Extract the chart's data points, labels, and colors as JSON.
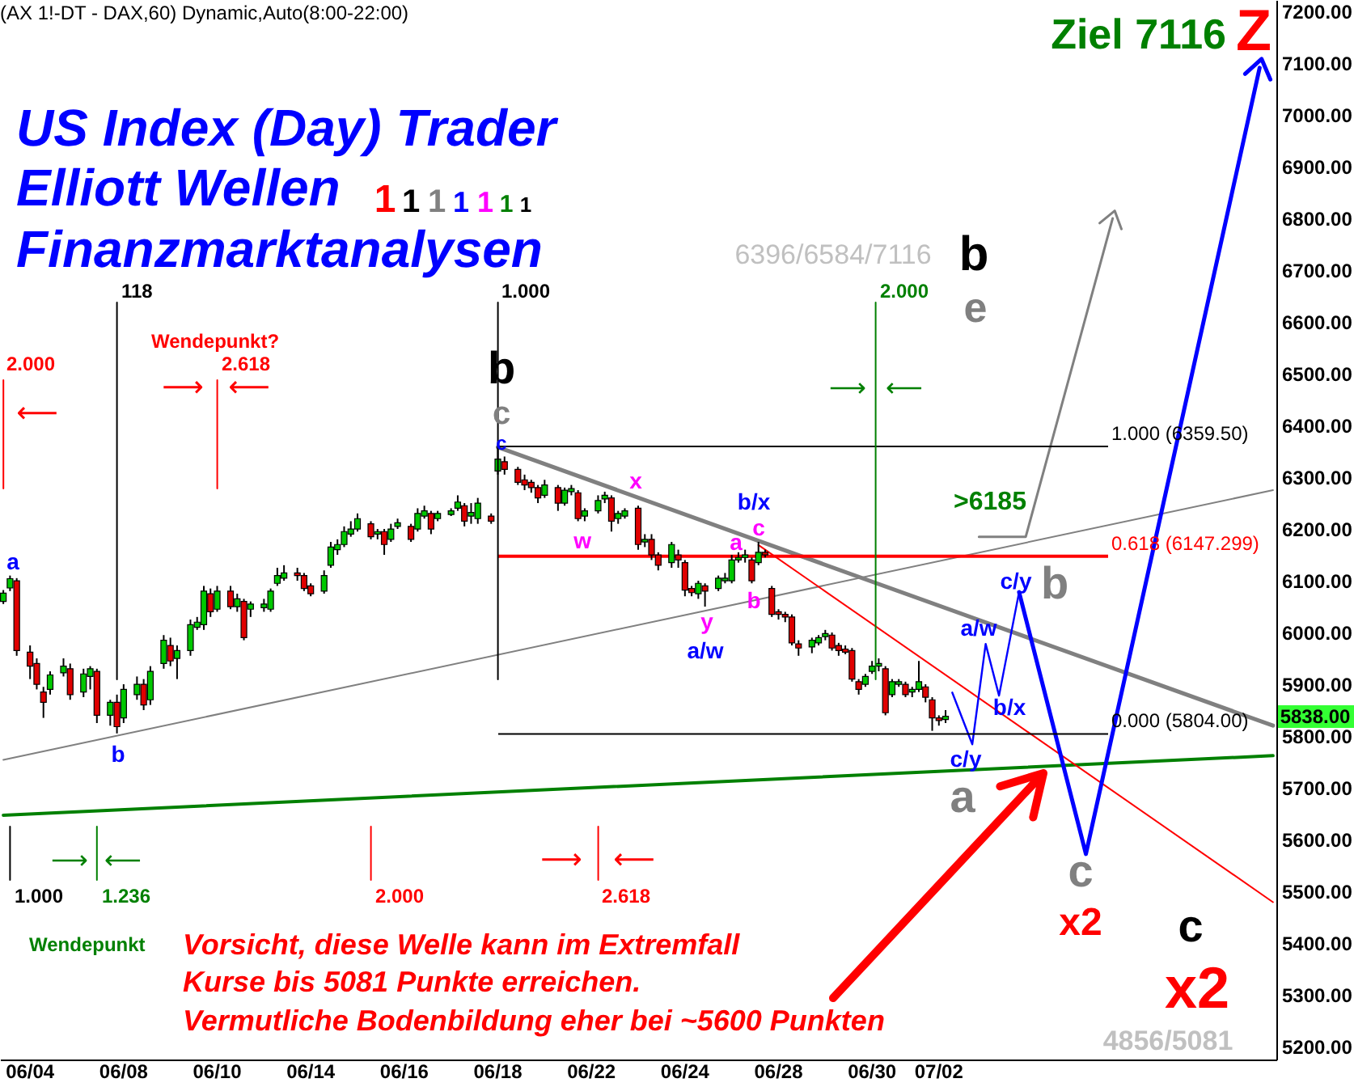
{
  "chart_data": {
    "type": "candlestick",
    "title": "(AX 1!-DT - DAX,60) Dynamic,Auto(8:00-22:00)",
    "categories": [
      null,
      null,
      null,
      null,
      "06/04",
      null,
      null,
      null,
      null,
      null,
      null,
      null,
      null,
      null,
      null,
      null,
      null,
      null,
      "06/08",
      null,
      null,
      null,
      null,
      null,
      null,
      null,
      null,
      null,
      null,
      null,
      null,
      null,
      "06/10",
      null,
      null,
      null,
      null,
      null,
      null,
      null,
      null,
      null,
      null,
      null,
      null,
      null,
      "06/14",
      null,
      null,
      null,
      null,
      null,
      null,
      null,
      null,
      null,
      null,
      null,
      null,
      null,
      "06/16",
      null,
      null,
      null,
      null,
      null,
      null,
      null,
      null,
      null,
      null,
      null,
      null,
      null,
      "06/18",
      null,
      null,
      null,
      null,
      null,
      null,
      null,
      null,
      null,
      null,
      null,
      null,
      null,
      "06/22",
      null,
      null,
      null,
      null,
      null,
      null,
      null,
      null,
      null,
      null,
      null,
      null,
      null,
      "06/24",
      null,
      null,
      null,
      null,
      null,
      null,
      null,
      null,
      null,
      null,
      null,
      null,
      null,
      "06/28",
      null,
      null,
      null,
      null,
      null,
      null,
      null,
      null,
      null,
      null,
      null,
      null,
      null,
      "06/30",
      null,
      null,
      null,
      null,
      null,
      null,
      null,
      null,
      null,
      "07/02",
      null,
      null,
      null,
      null,
      null,
      null,
      null,
      null,
      null,
      null,
      null,
      null,
      null,
      null,
      null,
      null,
      null,
      null,
      null,
      null,
      null,
      null,
      null,
      null,
      null,
      null,
      null,
      null,
      null,
      null,
      null,
      null,
      null,
      null,
      null,
      null,
      null,
      null,
      null,
      null,
      null,
      null,
      null,
      null,
      null,
      null,
      null,
      null,
      null,
      null
    ],
    "ohlc": [
      [
        6060,
        6082,
        6055,
        6076
      ],
      [
        6086,
        6110,
        6080,
        6104
      ],
      [
        6100,
        6105,
        5955,
        5965
      ],
      null,
      [
        5962,
        5975,
        5910,
        5935
      ],
      [
        5940,
        5950,
        5890,
        5900
      ],
      [
        5885,
        5895,
        5835,
        5865
      ],
      [
        5890,
        5925,
        5880,
        5918
      ],
      null,
      [
        5922,
        5950,
        5915,
        5935
      ],
      [
        5930,
        5940,
        5870,
        5880
      ],
      null,
      [
        5885,
        5930,
        5875,
        5920
      ],
      [
        5915,
        5935,
        5890,
        5930
      ],
      [
        5925,
        5930,
        5825,
        5840
      ],
      null,
      [
        5840,
        5870,
        5820,
        5865
      ],
      [
        5865,
        5880,
        5805,
        5818
      ],
      [
        5835,
        5900,
        5825,
        5890
      ],
      null,
      [
        5880,
        5915,
        5870,
        5900
      ],
      [
        5900,
        5910,
        5850,
        5860
      ],
      [
        5870,
        5935,
        5860,
        5925
      ],
      null,
      [
        5940,
        5995,
        5930,
        5985
      ],
      [
        5975,
        5990,
        5935,
        5945
      ],
      [
        5950,
        5975,
        5910,
        5965
      ],
      null,
      [
        5965,
        6025,
        5955,
        6015
      ],
      [
        6010,
        6030,
        6005,
        6020
      ],
      [
        6015,
        6090,
        6005,
        6080
      ],
      [
        6075,
        6085,
        6030,
        6040
      ],
      [
        6045,
        6090,
        6040,
        6080
      ],
      null,
      [
        6080,
        6090,
        6045,
        6050
      ],
      [
        6050,
        6075,
        6040,
        6065
      ],
      [
        6060,
        6065,
        5985,
        5990
      ],
      [
        6045,
        6060,
        6030,
        6055
      ],
      null,
      [
        6048,
        6065,
        6040,
        6055
      ],
      [
        6045,
        6085,
        6040,
        6080
      ],
      [
        6095,
        6125,
        6090,
        6110
      ],
      [
        6105,
        6130,
        6100,
        6115
      ],
      null,
      [
        6115,
        6125,
        6100,
        6110
      ],
      [
        6110,
        6115,
        6080,
        6085
      ],
      [
        6090,
        6095,
        6070,
        6075
      ],
      null,
      [
        6080,
        6120,
        6075,
        6110
      ],
      [
        6130,
        6175,
        6125,
        6165
      ],
      [
        6160,
        6180,
        6150,
        6170
      ],
      [
        6170,
        6205,
        6165,
        6195
      ],
      [
        6190,
        6215,
        6185,
        6200
      ],
      [
        6200,
        6230,
        6195,
        6220
      ],
      null,
      [
        6210,
        6215,
        6180,
        6185
      ],
      [
        6190,
        6200,
        6180,
        6195
      ],
      [
        6195,
        6200,
        6150,
        6170
      ],
      [
        6180,
        6210,
        6175,
        6200
      ],
      [
        6205,
        6220,
        6200,
        6212
      ],
      null,
      [
        6205,
        6210,
        6175,
        6180
      ],
      [
        6200,
        6240,
        6195,
        6230
      ],
      [
        6225,
        6245,
        6220,
        6235
      ],
      [
        6230,
        6235,
        6190,
        6200
      ],
      [
        6220,
        6235,
        6215,
        6230
      ],
      null,
      [
        6228,
        6240,
        6225,
        6235
      ],
      [
        6240,
        6265,
        6235,
        6252
      ],
      [
        6245,
        6250,
        6205,
        6215
      ],
      [
        6225,
        6250,
        6210,
        6232
      ],
      [
        6220,
        6260,
        6210,
        6250
      ],
      null,
      [
        6225,
        6230,
        6210,
        6215
      ],
      [
        6312,
        6359.5,
        6305,
        6335
      ],
      [
        6330,
        6340,
        6305,
        6315
      ],
      null,
      [
        6315,
        6320,
        6285,
        6290
      ],
      [
        6295,
        6305,
        6275,
        6285
      ],
      [
        6290,
        6295,
        6270,
        6280
      ],
      [
        6280,
        6285,
        6250,
        6260
      ],
      [
        6265,
        6295,
        6260,
        6285
      ],
      null,
      [
        6280,
        6285,
        6235,
        6250
      ],
      [
        6250,
        6280,
        6245,
        6275
      ],
      [
        6272,
        6285,
        6265,
        6278
      ],
      [
        6270,
        6275,
        6215,
        6220
      ],
      [
        6225,
        6240,
        6215,
        6235
      ],
      null,
      [
        6235,
        6265,
        6230,
        6255
      ],
      [
        6258,
        6272,
        6250,
        6265
      ],
      [
        6260,
        6265,
        6195,
        6215
      ],
      [
        6220,
        6235,
        6210,
        6230
      ],
      [
        6225,
        6240,
        6220,
        6235
      ],
      null,
      [
        6240,
        6245,
        6160,
        6170
      ],
      [
        6175,
        6190,
        6165,
        6180
      ],
      [
        6180,
        6190,
        6140,
        6150
      ],
      [
        6150,
        6155,
        6120,
        6130
      ],
      null,
      [
        6135,
        6175,
        6125,
        6170
      ],
      [
        6150,
        6160,
        6125,
        6140
      ],
      [
        6135,
        6140,
        6070,
        6082
      ],
      [
        6085,
        6090,
        6070,
        6077
      ],
      [
        6075,
        6100,
        6065,
        6095
      ],
      [
        6090,
        6095,
        6050,
        6080
      ],
      null,
      [
        6085,
        6110,
        6080,
        6105
      ],
      [
        6100,
        6115,
        6095,
        6105
      ],
      [
        6100,
        6150,
        6095,
        6140
      ],
      [
        6140,
        6155,
        6135,
        6145
      ],
      [
        6145,
        6160,
        6135,
        6150
      ],
      [
        6140,
        6145,
        6095,
        6100
      ],
      [
        6135,
        6175,
        6130,
        6155
      ],
      [
        6155,
        6160,
        6145,
        6150
      ],
      [
        6085,
        6090,
        6030,
        6035
      ],
      [
        6040,
        6045,
        6025,
        6035
      ],
      [
        6035,
        6040,
        6020,
        6030
      ],
      [
        6030,
        6035,
        5975,
        5980
      ],
      [
        5978,
        5985,
        5955,
        5970
      ],
      null,
      [
        5972,
        5990,
        5960,
        5985
      ],
      [
        5980,
        5995,
        5975,
        5990
      ],
      [
        5992,
        6005,
        5985,
        5998
      ],
      [
        5995,
        6000,
        5965,
        5970
      ],
      [
        5975,
        5980,
        5955,
        5965
      ],
      [
        5968,
        5975,
        5958,
        5962
      ],
      [
        5965,
        5970,
        5905,
        5910
      ],
      [
        5905,
        5910,
        5880,
        5890
      ],
      [
        5900,
        5920,
        5895,
        5915
      ],
      [
        5925,
        5945,
        5920,
        5935
      ],
      [
        5935,
        5950,
        5925,
        5940
      ],
      [
        5930,
        5935,
        5840,
        5845
      ],
      [
        5880,
        5910,
        5875,
        5905
      ],
      [
        5900,
        5910,
        5895,
        5905
      ],
      [
        5900,
        5905,
        5875,
        5880
      ],
      [
        5885,
        5895,
        5875,
        5890
      ],
      [
        5890,
        5945,
        5885,
        5905
      ],
      [
        5895,
        5900,
        5865,
        5875
      ],
      [
        5870,
        5875,
        5810,
        5835
      ],
      [
        5835,
        5840,
        5820,
        5830
      ],
      [
        5832,
        5850,
        5825,
        5838
      ],
      null,
      null,
      null,
      null,
      null,
      null,
      null,
      null,
      null,
      null,
      null,
      null,
      null,
      null,
      null,
      null,
      null,
      null,
      null,
      null,
      null,
      null,
      null,
      null,
      null,
      null,
      null,
      null,
      null,
      null,
      null,
      null,
      null,
      null,
      null,
      null,
      null,
      null,
      null,
      null,
      null,
      null,
      null,
      null,
      null,
      null,
      null,
      null,
      null
    ],
    "colors": [
      "#00c800",
      "#00c800",
      "#e00000",
      null,
      "#e00000",
      "#e00000",
      "#e00000",
      "#00c800",
      null,
      "#00c800",
      "#e00000",
      null,
      "#00c800",
      "#00c800",
      "#e00000",
      null,
      "#00c800",
      "#e00000",
      "#00c800",
      null,
      "#00c800",
      "#e00000",
      "#00c800",
      null,
      "#00c800",
      "#e00000",
      "#00c800",
      null,
      "#00c800",
      "#00c800",
      "#00c800",
      "#e00000",
      "#00c800",
      null,
      "#e00000",
      "#00c800",
      "#e00000",
      "#00c800",
      null,
      "#00c800",
      "#00c800",
      "#00c800",
      "#00c800",
      null,
      "#e00000",
      "#e00000",
      "#e00000",
      null,
      "#00c800",
      "#00c800",
      "#00c800",
      "#00c800",
      "#00c800",
      "#00c800",
      null,
      "#e00000",
      "#00c800",
      "#e00000",
      "#00c800",
      "#00c800",
      null,
      "#e00000",
      "#00c800",
      "#00c800",
      "#e00000",
      "#00c800",
      null,
      "#00c800",
      "#00c800",
      "#e00000",
      "#00c800",
      "#00c800",
      null,
      "#e00000",
      "#00c800",
      "#e00000",
      null,
      "#e00000",
      "#e00000",
      "#e00000",
      "#e00000",
      "#00c800",
      null,
      "#e00000",
      "#00c800",
      "#00c800",
      "#e00000",
      "#00c800",
      null,
      "#00c800",
      "#00c800",
      "#e00000",
      "#00c800",
      "#00c800",
      null,
      "#e00000",
      "#00c800",
      "#e00000",
      "#e00000",
      null,
      "#00c800",
      "#e00000",
      "#e00000",
      "#e00000",
      "#00c800",
      "#e00000",
      null,
      "#00c800",
      "#00c800",
      "#00c800",
      "#00c800",
      "#00c800",
      "#e00000",
      "#00c800",
      "#e00000",
      "#e00000",
      "#e00000",
      "#e00000",
      "#e00000",
      "#e00000",
      null,
      "#00c800",
      "#00c800",
      "#00c800",
      "#e00000",
      "#e00000",
      "#e00000",
      "#e00000",
      "#e00000",
      "#00c800",
      "#00c800",
      "#00c800",
      "#e00000",
      "#00c800",
      "#00c800",
      "#e00000",
      "#00c800",
      "#00c800",
      "#e00000",
      "#e00000",
      "#e00000",
      "#00c800",
      null,
      null,
      null,
      null,
      null,
      null,
      null,
      null,
      null,
      null,
      null,
      null,
      null,
      null,
      null,
      null,
      null,
      null,
      null,
      null,
      null,
      null,
      null,
      null,
      null,
      null,
      null,
      null,
      null,
      null,
      null,
      null,
      null,
      null,
      null,
      null,
      null,
      null,
      null,
      null,
      null,
      null,
      null,
      null,
      null,
      null,
      null,
      null,
      null
    ],
    "series": [
      {
        "type": "line",
        "color": "#808080",
        "values": [
          null,
          null,
          null,
          null,
          null,
          null,
          null,
          null,
          null,
          null,
          null,
          null,
          null,
          null,
          null,
          null,
          null,
          null,
          null,
          null,
          null,
          null,
          null,
          null,
          null,
          null,
          null,
          null,
          null,
          null,
          null,
          null,
          null,
          null,
          null,
          null,
          null,
          null,
          null,
          null,
          null,
          null,
          null,
          null,
          null,
          null,
          null,
          null,
          null,
          null,
          null,
          null,
          null,
          null,
          null,
          null,
          null,
          null,
          null,
          null,
          null,
          null,
          null,
          null,
          null,
          null,
          null,
          null,
          null,
          null,
          null,
          null,
          null,
          null,
          6358,
          null,
          null,
          null,
          null,
          null,
          null,
          null,
          null,
          null,
          null,
          null,
          null,
          null,
          null,
          null,
          null,
          null,
          null,
          null,
          null,
          null,
          null,
          null,
          null,
          null,
          null,
          null,
          null,
          null,
          null,
          null,
          null,
          null,
          null,
          null,
          null,
          null,
          null,
          null,
          null,
          null,
          null,
          null,
          null,
          null,
          null,
          null,
          null,
          null,
          null,
          null,
          null,
          null,
          null,
          null,
          null,
          null,
          null,
          null,
          null,
          null,
          null,
          null,
          null,
          null,
          null,
          null,
          null,
          null,
          null,
          null,
          null,
          null,
          null,
          null,
          null,
          null,
          null,
          null,
          null,
          null,
          null,
          null,
          null,
          null,
          null,
          null,
          null,
          null,
          null,
          null,
          null,
          null,
          null,
          null,
          null,
          null,
          null,
          null,
          null,
          null,
          null,
          null,
          null,
          null,
          null,
          null,
          null,
          null,
          null,
          null,
          null,
          null,
          null,
          null,
          5820
        ]
      },
      {
        "type": "line",
        "color": "#808080",
        "values": [
          5754,
          null,
          null,
          null,
          null,
          null,
          null,
          null,
          null,
          null,
          null,
          null,
          null,
          null,
          null,
          null,
          null,
          null,
          null,
          null,
          null,
          null,
          null,
          null,
          null,
          null,
          null,
          null,
          null,
          null,
          null,
          null,
          null,
          null,
          null,
          null,
          null,
          null,
          null,
          null,
          null,
          null,
          null,
          null,
          null,
          null,
          null,
          null,
          null,
          null,
          null,
          null,
          null,
          null,
          null,
          null,
          null,
          null,
          null,
          null,
          null,
          null,
          null,
          null,
          null,
          null,
          null,
          null,
          null,
          null,
          null,
          null,
          null,
          null,
          null,
          null,
          null,
          null,
          null,
          null,
          null,
          null,
          null,
          null,
          null,
          null,
          null,
          null,
          null,
          null,
          null,
          null,
          null,
          null,
          null,
          null,
          null,
          null,
          null,
          null,
          null,
          null,
          null,
          null,
          null,
          null,
          null,
          null,
          null,
          null,
          null,
          null,
          null,
          null,
          null,
          null,
          null,
          null,
          null,
          null,
          null,
          null,
          null,
          null,
          null,
          null,
          null,
          null,
          null,
          null,
          null,
          null,
          null,
          null,
          null,
          null,
          null,
          null,
          null,
          null,
          null,
          null,
          null,
          null,
          null,
          null,
          null,
          null,
          null,
          null,
          null,
          null,
          null,
          null,
          null,
          null,
          null,
          null,
          null,
          null,
          null,
          null,
          null,
          null,
          null,
          null,
          null,
          null,
          null,
          null,
          null,
          null,
          null,
          null,
          null,
          null,
          null,
          null,
          null,
          null,
          null,
          null,
          null,
          null,
          null,
          null,
          null,
          null,
          null,
          null,
          6275
        ]
      },
      {
        "type": "line",
        "color": "#008000",
        "values": [
          5647,
          null,
          null,
          null,
          null,
          null,
          null,
          null,
          null,
          null,
          null,
          null,
          null,
          null,
          null,
          null,
          null,
          null,
          null,
          null,
          null,
          null,
          null,
          null,
          null,
          null,
          null,
          null,
          null,
          null,
          null,
          null,
          null,
          null,
          null,
          null,
          null,
          null,
          null,
          null,
          null,
          null,
          null,
          null,
          null,
          null,
          null,
          null,
          null,
          null,
          null,
          null,
          null,
          null,
          null,
          null,
          null,
          null,
          null,
          null,
          null,
          null,
          null,
          null,
          null,
          null,
          null,
          null,
          null,
          null,
          null,
          null,
          null,
          null,
          null,
          null,
          null,
          null,
          null,
          null,
          null,
          null,
          null,
          null,
          null,
          null,
          null,
          null,
          null,
          null,
          null,
          null,
          null,
          null,
          null,
          null,
          null,
          null,
          null,
          null,
          null,
          null,
          null,
          null,
          null,
          null,
          null,
          null,
          null,
          null,
          null,
          null,
          null,
          null,
          null,
          null,
          null,
          null,
          null,
          null,
          null,
          null,
          null,
          null,
          null,
          null,
          null,
          null,
          null,
          null,
          null,
          null,
          null,
          null,
          null,
          null,
          null,
          null,
          null,
          null,
          null,
          null,
          null,
          null,
          null,
          null,
          null,
          null,
          null,
          null,
          null,
          null,
          null,
          null,
          null,
          null,
          null,
          null,
          null,
          null,
          null,
          null,
          null,
          null,
          null,
          null,
          null,
          null,
          null,
          null,
          null,
          null,
          null,
          null,
          null,
          null,
          null,
          null,
          null,
          null,
          null,
          null,
          null,
          null,
          null,
          null,
          null,
          null,
          null,
          null,
          5762
        ]
      },
      {
        "type": "line",
        "color": "#ff0000",
        "values": [
          null,
          null,
          null,
          null,
          null,
          null,
          null,
          null,
          null,
          null,
          null,
          null,
          null,
          null,
          null,
          null,
          null,
          null,
          null,
          null,
          null,
          null,
          null,
          null,
          null,
          null,
          null,
          null,
          null,
          null,
          null,
          null,
          null,
          null,
          null,
          null,
          null,
          null,
          null,
          null,
          null,
          null,
          null,
          null,
          null,
          null,
          null,
          null,
          null,
          null,
          null,
          null,
          null,
          null,
          null,
          null,
          null,
          null,
          null,
          null,
          null,
          null,
          null,
          null,
          null,
          null,
          null,
          null,
          null,
          null,
          null,
          null,
          null,
          null,
          null,
          null,
          null,
          null,
          null,
          null,
          null,
          null,
          null,
          null,
          null,
          null,
          null,
          null,
          null,
          null,
          null,
          null,
          null,
          null,
          null,
          null,
          null,
          null,
          null,
          null,
          null,
          null,
          null,
          null,
          null,
          null,
          null,
          null,
          null,
          null,
          null,
          null,
          null,
          6169,
          null,
          null,
          null,
          null,
          null,
          null,
          null,
          null,
          null,
          null,
          null,
          null,
          null,
          null,
          null,
          null,
          null,
          null,
          null,
          null,
          null,
          null,
          null,
          null,
          null,
          null,
          null,
          null,
          null,
          null,
          null,
          null,
          null,
          null,
          null,
          null,
          null,
          null,
          null,
          null,
          null,
          null,
          null,
          null,
          null,
          null,
          null,
          null,
          null,
          null,
          null,
          null,
          null,
          null,
          null,
          null,
          null,
          null,
          null,
          null,
          null,
          null,
          null,
          null,
          null,
          null,
          null,
          null,
          null,
          null,
          null,
          null,
          null,
          null,
          null,
          null,
          5479
        ]
      },
      {
        "type": "line",
        "color": "#0000ff",
        "values": [
          null,
          null,
          null,
          null,
          null,
          null,
          null,
          null,
          null,
          null,
          null,
          null,
          null,
          null,
          null,
          null,
          null,
          null,
          null,
          null,
          null,
          null,
          null,
          null,
          null,
          null,
          null,
          null,
          null,
          null,
          null,
          null,
          null,
          null,
          null,
          null,
          null,
          null,
          null,
          null,
          null,
          null,
          null,
          null,
          null,
          null,
          null,
          null,
          null,
          null,
          null,
          null,
          null,
          null,
          null,
          null,
          null,
          null,
          null,
          null,
          null,
          null,
          null,
          null,
          null,
          null,
          null,
          null,
          null,
          null,
          null,
          null,
          null,
          null,
          null,
          null,
          null,
          null,
          null,
          null,
          null,
          null,
          null,
          null,
          null,
          null,
          null,
          null,
          null,
          null,
          null,
          null,
          null,
          null,
          null,
          null,
          null,
          null,
          null,
          null,
          null,
          null,
          null,
          null,
          null,
          null,
          null,
          null,
          null,
          null,
          null,
          null,
          null,
          null,
          null,
          null,
          null,
          null,
          null,
          null,
          null,
          null,
          null,
          null,
          null,
          null,
          null,
          null,
          null,
          null,
          null,
          null,
          null,
          null,
          null,
          null,
          null,
          null,
          null,
          null,
          null,
          null,
          5884,
          null,
          null,
          5784,
          null,
          5978,
          null,
          5878,
          null,
          null,
          6078,
          null,
          null,
          null,
          null,
          null,
          null,
          null,
          null,
          null,
          null,
          null,
          null,
          null,
          null,
          null,
          null,
          null,
          null,
          null,
          null,
          null,
          null,
          null,
          null,
          null,
          null,
          null,
          null,
          null,
          null,
          null,
          null,
          null,
          null,
          null,
          null,
          null,
          null
        ]
      },
      {
        "type": "line",
        "color": "#0000ff",
        "values": [
          null,
          null,
          null,
          null,
          null,
          null,
          null,
          null,
          null,
          null,
          null,
          null,
          null,
          null,
          null,
          null,
          null,
          null,
          null,
          null,
          null,
          null,
          null,
          null,
          null,
          null,
          null,
          null,
          null,
          null,
          null,
          null,
          null,
          null,
          null,
          null,
          null,
          null,
          null,
          null,
          null,
          null,
          null,
          null,
          null,
          null,
          null,
          null,
          null,
          null,
          null,
          null,
          null,
          null,
          null,
          null,
          null,
          null,
          null,
          null,
          null,
          null,
          null,
          null,
          null,
          null,
          null,
          null,
          null,
          null,
          null,
          null,
          null,
          null,
          null,
          null,
          null,
          null,
          null,
          null,
          null,
          null,
          null,
          null,
          null,
          null,
          null,
          null,
          null,
          null,
          null,
          null,
          null,
          null,
          null,
          null,
          null,
          null,
          null,
          null,
          null,
          null,
          null,
          null,
          null,
          null,
          null,
          null,
          null,
          null,
          null,
          null,
          null,
          null,
          null,
          null,
          null,
          null,
          null,
          null,
          null,
          null,
          null,
          null,
          null,
          null,
          null,
          null,
          null,
          null,
          null,
          null,
          null,
          null,
          null,
          null,
          null,
          null,
          null,
          null,
          null,
          null,
          null,
          null,
          null,
          null,
          null,
          null,
          null,
          null,
          null,
          null,
          6078,
          null,
          null,
          null,
          null,
          null,
          null,
          null,
          null,
          null,
          5572,
          null,
          null,
          null,
          null,
          null,
          null,
          null,
          null,
          null,
          null,
          null,
          null,
          null,
          null,
          null,
          null,
          null,
          null,
          null,
          null,
          null,
          null,
          null,
          null,
          null,
          7091,
          null,
          null
        ]
      },
      {
        "type": "line",
        "color": "#808080",
        "values": [
          null,
          null,
          null,
          null,
          null,
          null,
          null,
          null,
          null,
          null,
          null,
          null,
          null,
          null,
          null,
          null,
          null,
          null,
          null,
          null,
          null,
          null,
          null,
          null,
          null,
          null,
          null,
          null,
          null,
          null,
          null,
          null,
          null,
          null,
          null,
          null,
          null,
          null,
          null,
          null,
          null,
          null,
          null,
          null,
          null,
          null,
          null,
          null,
          null,
          null,
          null,
          null,
          null,
          null,
          null,
          null,
          null,
          null,
          null,
          null,
          null,
          null,
          null,
          null,
          null,
          null,
          null,
          null,
          null,
          null,
          null,
          null,
          null,
          null,
          null,
          null,
          null,
          null,
          null,
          null,
          null,
          null,
          null,
          null,
          null,
          null,
          null,
          null,
          null,
          null,
          null,
          null,
          null,
          null,
          null,
          null,
          null,
          null,
          null,
          null,
          null,
          null,
          null,
          null,
          null,
          null,
          null,
          null,
          null,
          null,
          null,
          null,
          null,
          null,
          null,
          null,
          null,
          null,
          null,
          null,
          null,
          null,
          null,
          null,
          null,
          null,
          null,
          null,
          null,
          null,
          null,
          null,
          null,
          null,
          null,
          null,
          null,
          null,
          null,
          null,
          null,
          null,
          null,
          null,
          null,
          null,
          6185,
          null,
          null,
          null,
          null,
          null,
          null,
          6185,
          null,
          null,
          null,
          null,
          null,
          null,
          null,
          null,
          null,
          null,
          null,
          null,
          6800,
          null,
          null,
          null,
          null,
          null,
          null,
          null,
          null,
          null,
          null,
          null,
          null,
          null,
          null,
          null,
          null,
          null,
          null,
          null,
          null,
          null,
          null,
          null,
          null
        ]
      }
    ],
    "ref_lines": [
      {
        "axis": "y",
        "value": 6359.5,
        "label": "1.000 (6359.50)",
        "color": "#000000"
      },
      {
        "axis": "y",
        "value": 6147.299,
        "label": "0.618 (6147.299)",
        "color": "#ff0000"
      },
      {
        "axis": "y",
        "value": 5804,
        "label": "0.000 (5804.00)",
        "color": "#000000"
      }
    ],
    "annotations": [
      "US Index (Day) Trader",
      "Elliott Wellen",
      "1",
      "1",
      "1",
      "1",
      "1",
      "1",
      "1",
      "Finanzmarktanalysen",
      "Ziel 7116",
      "Z",
      "6396/6584/7116",
      "b",
      "e",
      "Wendepunkt?",
      "b",
      "c",
      "c",
      "a",
      "b",
      "x",
      "w",
      "b/x",
      "a",
      "c",
      "b",
      "y",
      "a/w",
      ">6185",
      "b",
      "c/y",
      "a/w",
      "b/x",
      "c/y",
      "a",
      "5838.00",
      "c",
      "x2",
      "Wendepunkt",
      "Vorsicht, diese Welle kann im Extremfall",
      "Kurse bis 5081 Punkte erreichen.",
      "Vermutliche Bodenbildung eher bei ~5600 Punkten",
      "c",
      "x2",
      "4856/5081",
      "118",
      "1.000",
      "2.000",
      "2.000",
      "2.618",
      "1.000",
      "1.236",
      "2.000",
      "2.618",
      "⟵",
      "⟶",
      "⟵",
      "⟶",
      "⟵",
      "⟶",
      "⟵",
      "⟶",
      "⟵"
    ],
    "ylim": [
      5175,
      7222
    ],
    "yticks": [
      {
        "value": 5200,
        "label": "5200.00"
      },
      {
        "value": 5300,
        "label": "5300.00"
      },
      {
        "value": 5400,
        "label": "5400.00"
      },
      {
        "value": 5500,
        "label": "5500.00"
      },
      {
        "value": 5600,
        "label": "5600.00"
      },
      {
        "value": 5700,
        "label": "5700.00"
      },
      {
        "value": 5800,
        "label": "5800.00"
      },
      {
        "value": 5900,
        "label": "5900.00"
      },
      {
        "value": 6000,
        "label": "6000.00"
      },
      {
        "value": 6100,
        "label": "6100.00"
      },
      {
        "value": 6200,
        "label": "6200.00"
      },
      {
        "value": 6300,
        "label": "6300.00"
      },
      {
        "value": 6400,
        "label": "6400.00"
      },
      {
        "value": 6500,
        "label": "6500.00"
      },
      {
        "value": 6600,
        "label": "6600.00"
      },
      {
        "value": 6700,
        "label": "6700.00"
      },
      {
        "value": 6800,
        "label": "6800.00"
      },
      {
        "value": 6900,
        "label": "6900.00"
      },
      {
        "value": 7000,
        "label": "7000.00"
      },
      {
        "value": 7100,
        "label": "7100.00"
      },
      {
        "value": 7200,
        "label": "7200.00"
      }
    ]
  }
}
